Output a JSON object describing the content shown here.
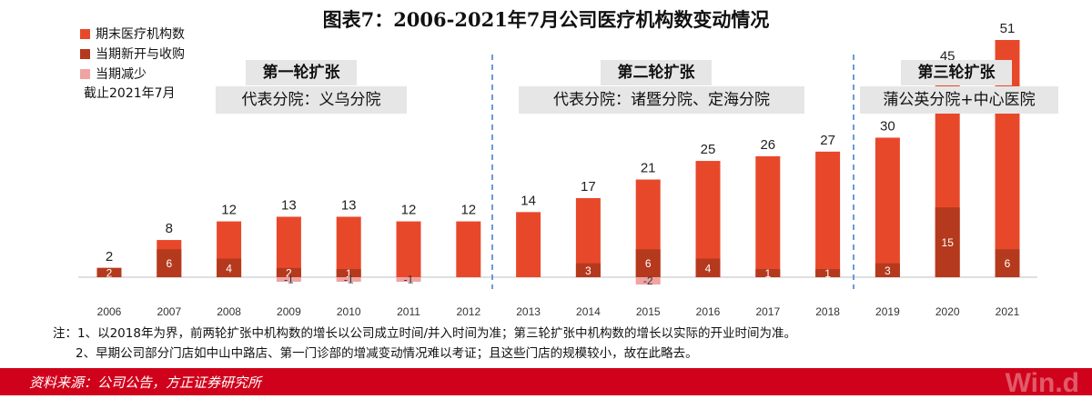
{
  "chart_data": {
    "type": "bar",
    "title": "图表7：2006-2021年7月公司医疗机构数变动情况",
    "categories": [
      "2006",
      "2007",
      "2008",
      "2009",
      "2010",
      "2011",
      "2012",
      "2013",
      "2014",
      "2015",
      "2016",
      "2017",
      "2018",
      "2019",
      "2020",
      "2021"
    ],
    "series": [
      {
        "name": "期末医疗机构数",
        "values": [
          2,
          8,
          12,
          13,
          13,
          12,
          12,
          14,
          17,
          21,
          25,
          26,
          27,
          30,
          45,
          51
        ],
        "color": "#e8482a"
      },
      {
        "name": "当期新开与收购",
        "values": [
          2,
          6,
          4,
          2,
          1,
          null,
          null,
          null,
          3,
          6,
          4,
          1,
          1,
          3,
          15,
          6
        ],
        "color": "#b5391d"
      },
      {
        "name": "当期减少",
        "values": [
          null,
          null,
          null,
          -1,
          -1,
          -1,
          null,
          null,
          null,
          -2,
          null,
          null,
          null,
          null,
          null,
          null
        ],
        "color": "#f0a3a3"
      }
    ],
    "ylim": [
      -3,
      58
    ],
    "legend_position": "top-left",
    "grid": false,
    "note": "截止2021年7月"
  },
  "phases": [
    {
      "title": "第一轮扩张",
      "subtitle": "代表分院：义乌分院"
    },
    {
      "title": "第二轮扩张",
      "subtitle": "代表分院：诸暨分院、定海分院"
    },
    {
      "title": "第三轮扩张",
      "subtitle": "蒲公英分院+中心医院"
    }
  ],
  "notes": [
    "注：1、以2018年为界，前两轮扩张中机构数的增长以公司成立时间/并入时间为准；第三轮扩张中机构数的增长以实际的开业时间为准。",
    "2、早期公司部分门店如中山中路店、第一门诊部的增减变动情况难以考证；且这些门店的规模较小，故在此略去。"
  ],
  "footer": {
    "source": "资料来源：公司公告，方正证券研究所",
    "watermark": "Win.d"
  }
}
